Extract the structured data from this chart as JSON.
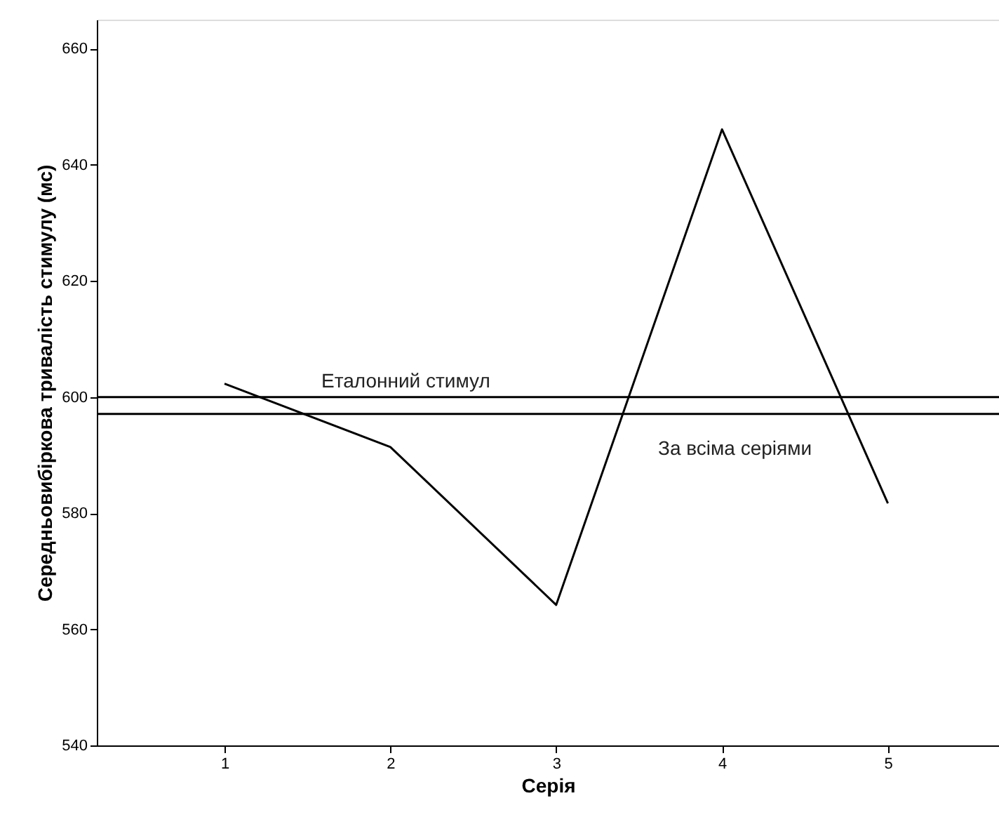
{
  "chart_data": {
    "type": "line",
    "xlabel": "Серія",
    "ylabel": "Середньовибіркова тривалість стимулу (мс)",
    "x": [
      1,
      2,
      3,
      4,
      5
    ],
    "series": [
      {
        "color": "#000000",
        "values": [
          602.3,
          591.4,
          564.2,
          646.1,
          581.7
        ]
      }
    ],
    "xlim": [
      0.23,
      5.67
    ],
    "xticks": [
      1,
      2,
      3,
      4,
      5
    ],
    "ylim": [
      540,
      665
    ],
    "yticks": [
      540,
      560,
      580,
      600,
      620,
      640,
      660
    ],
    "ref_lines": [
      {
        "axis": "y",
        "value": 600.0,
        "label": "Еталонний стимул",
        "color": "#000000"
      },
      {
        "axis": "y",
        "value": 597.1,
        "label": "За всіма серіями",
        "color": "#000000"
      }
    ],
    "grid": false,
    "marker": "none",
    "line_style": "solid"
  }
}
